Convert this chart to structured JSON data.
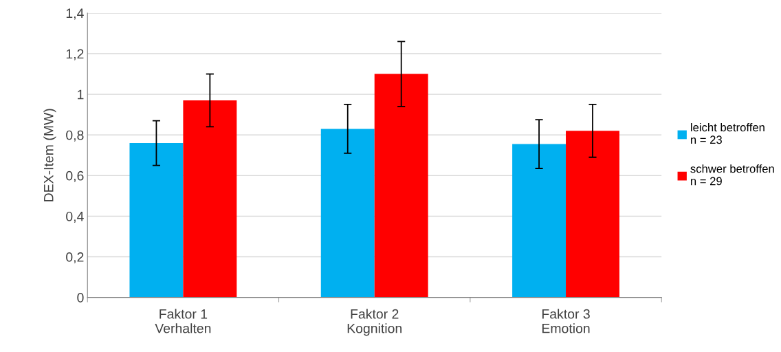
{
  "chart_data": {
    "type": "bar",
    "ylabel": "DEX-Item (MW)",
    "categories": [
      "Faktor 1\nVerhalten",
      "Faktor 2\nKognition",
      "Faktor 3\nEmotion"
    ],
    "series": [
      {
        "name": "leicht betroffen\nn = 23",
        "color": "#00b0f0",
        "values": [
          0.76,
          0.83,
          0.755
        ],
        "errors": [
          0.11,
          0.12,
          0.12
        ]
      },
      {
        "name": "schwer betroffen\nn = 29",
        "color": "#ff0000",
        "values": [
          0.97,
          1.1,
          0.82
        ],
        "errors": [
          0.13,
          0.16,
          0.13
        ]
      }
    ],
    "ylim": [
      0,
      1.4
    ],
    "yticks": [
      {
        "value": 0,
        "label": "0"
      },
      {
        "value": 0.2,
        "label": "0,2"
      },
      {
        "value": 0.4,
        "label": "0,4"
      },
      {
        "value": 0.6,
        "label": "0,6"
      },
      {
        "value": 0.8,
        "label": "0,8"
      },
      {
        "value": 1,
        "label": "1"
      },
      {
        "value": 1.2,
        "label": "1,2"
      },
      {
        "value": 1.4,
        "label": "1,4"
      }
    ],
    "grid": "y",
    "legend": "right"
  }
}
